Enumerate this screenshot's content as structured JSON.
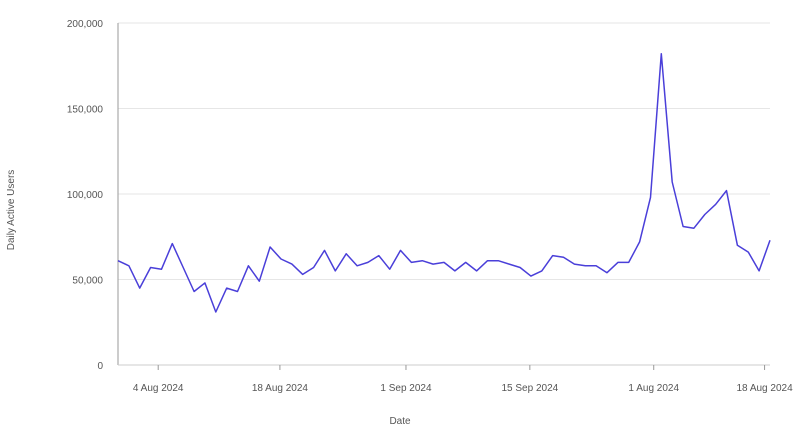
{
  "chart_data": {
    "type": "line",
    "title": "",
    "xlabel": "Date",
    "ylabel": "Daily Active Users",
    "ylim": [
      0,
      200000
    ],
    "yticks": [
      0,
      50000,
      100000,
      150000,
      200000
    ],
    "ytick_labels": [
      "0",
      "50,000",
      "100,000",
      "150,000",
      "200,000"
    ],
    "xticks": [
      {
        "label": "4 Aug 2024",
        "at": 3.7
      },
      {
        "label": "18 Aug 2024",
        "at": 14.9
      },
      {
        "label": "1 Sep 2024",
        "at": 26.5
      },
      {
        "label": "15 Sep 2024",
        "at": 37.9
      },
      {
        "label": "1 Aug 2024",
        "at": 49.3
      },
      {
        "label": "18 Aug 2024",
        "at": 59.5
      }
    ],
    "grid": true,
    "color": "#4a3fd9",
    "values": [
      61000,
      58000,
      45000,
      57000,
      56000,
      71000,
      57000,
      43000,
      48000,
      31000,
      45000,
      43000,
      58000,
      49000,
      69000,
      62000,
      59000,
      53000,
      57000,
      67000,
      55000,
      65000,
      58000,
      60000,
      64000,
      56000,
      67000,
      60000,
      61000,
      59000,
      60000,
      55000,
      60000,
      55000,
      61000,
      61000,
      59000,
      57000,
      52000,
      55000,
      64000,
      63000,
      59000,
      58000,
      58000,
      54000,
      60000,
      60000,
      72000,
      98000,
      182000,
      107000,
      81000,
      80000,
      88000,
      94000,
      102000,
      70000,
      66000,
      55000,
      73000
    ]
  }
}
